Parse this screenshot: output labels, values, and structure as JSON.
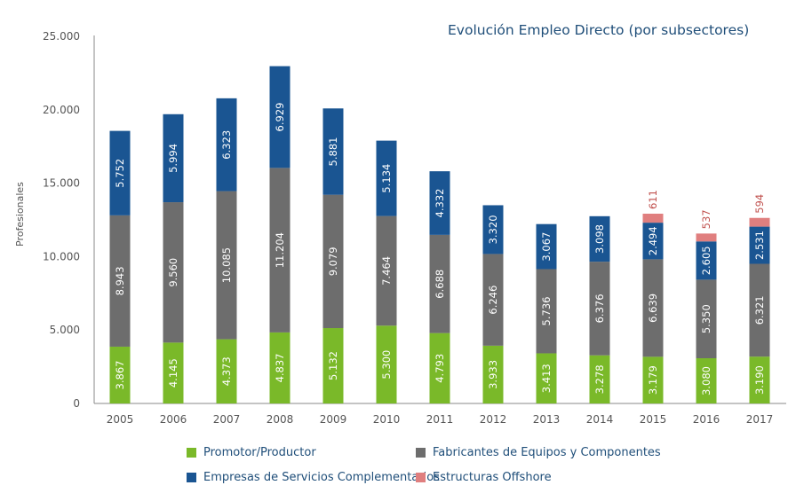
{
  "chart_data": {
    "type": "bar",
    "stacked": true,
    "title": "Evolución Empleo Directo (por subsectores)",
    "xlabel": "",
    "ylabel": "Profesionales",
    "ylim": [
      0,
      25000
    ],
    "yticks": [
      0,
      5000,
      10000,
      15000,
      20000,
      25000
    ],
    "ytick_labels": [
      "0",
      "5.000",
      "10.000",
      "15.000",
      "20.000",
      "25.000"
    ],
    "grid": false,
    "legend_position": "bottom",
    "categories": [
      "2005",
      "2006",
      "2007",
      "2008",
      "2009",
      "2010",
      "2011",
      "2012",
      "2013",
      "2014",
      "2015",
      "2016",
      "2017"
    ],
    "series": [
      {
        "name": "Promotor/Productor",
        "color": "#7ab929",
        "values": [
          3867,
          4145,
          4373,
          4837,
          5132,
          5300,
          4793,
          3933,
          3413,
          3278,
          3179,
          3080,
          3190
        ],
        "labels": [
          "3.867",
          "4.145",
          "4.373",
          "4.837",
          "5.132",
          "5.300",
          "4.793",
          "3.933",
          "3.413",
          "3.278",
          "3.179",
          "3.080",
          "3.190"
        ]
      },
      {
        "name": "Fabricantes de Equipos y Componentes",
        "color": "#6d6d6d",
        "values": [
          8943,
          9560,
          10085,
          11204,
          9079,
          7464,
          6688,
          6246,
          5736,
          6376,
          6639,
          5350,
          6321
        ],
        "labels": [
          "8.943",
          "9.560",
          "10.085",
          "11.204",
          "9.079",
          "7.464",
          "6.688",
          "6.246",
          "5.736",
          "6.376",
          "6.639",
          "5.350",
          "6.321"
        ]
      },
      {
        "name": "Empresas de Servicios Complementarios",
        "color": "#1a5592",
        "values": [
          5752,
          5994,
          6323,
          6929,
          5881,
          5134,
          4332,
          3320,
          3067,
          3098,
          2494,
          2605,
          2531
        ],
        "labels": [
          "5.752",
          "5.994",
          "6.323",
          "6.929",
          "5.881",
          "5.134",
          "4.332",
          "3.320",
          "3.067",
          "3.098",
          "2.494",
          "2.605",
          "2.531"
        ]
      },
      {
        "name": "Estructuras Offshore",
        "color": "#e07f7f",
        "values": [
          0,
          0,
          0,
          0,
          0,
          0,
          0,
          0,
          0,
          0,
          611,
          537,
          594
        ],
        "labels": [
          "",
          "",
          "",
          "",
          "",
          "",
          "",
          "",
          "",
          "",
          "611",
          "537",
          "594"
        ]
      }
    ]
  },
  "legend": {
    "items": [
      {
        "label": "Promotor/Productor",
        "color": "#7ab929"
      },
      {
        "label": "Fabricantes de Equipos y Componentes",
        "color": "#6d6d6d"
      },
      {
        "label": "Empresas de Servicios Complementarios",
        "color": "#1a5592"
      },
      {
        "label": "Estructuras Offshore",
        "color": "#e07f7f"
      }
    ]
  }
}
